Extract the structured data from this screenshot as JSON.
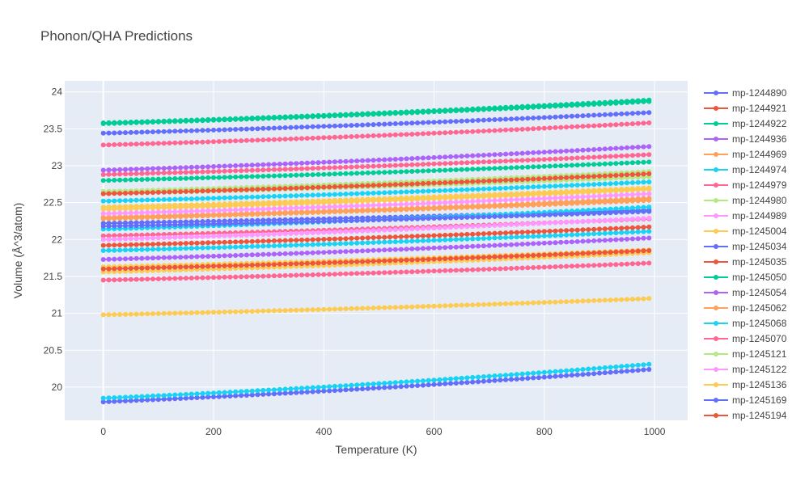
{
  "chart_data": {
    "type": "line",
    "title": "Phonon/QHA Predictions",
    "xlabel": "Temperature (K)",
    "ylabel": "Volume (Å^3/atom)",
    "xlim": [
      -70,
      1060
    ],
    "ylim": [
      19.55,
      24.15
    ],
    "x_ticks": [
      0,
      200,
      400,
      600,
      800,
      1000
    ],
    "y_ticks": [
      20,
      20.5,
      21,
      21.5,
      22,
      22.5,
      23,
      23.5,
      24
    ],
    "x": [
      0,
      990
    ],
    "grid": true,
    "legend_position": "right",
    "series": [
      {
        "name": "mp-1244890",
        "color": "#636efa",
        "values": [
          19.8,
          20.24
        ]
      },
      {
        "name": "mp-1244921",
        "color": "#ef553b",
        "values": [
          21.6,
          21.85
        ]
      },
      {
        "name": "mp-1244922",
        "color": "#00cc96",
        "values": [
          23.58,
          23.89
        ]
      },
      {
        "name": "mp-1244936",
        "color": "#ab63fa",
        "values": [
          21.73,
          22.02
        ]
      },
      {
        "name": "mp-1244969",
        "color": "#ffa15a",
        "values": [
          22.28,
          22.56
        ]
      },
      {
        "name": "mp-1244974",
        "color": "#19d3f3",
        "values": [
          22.14,
          22.44
        ]
      },
      {
        "name": "mp-1244979",
        "color": "#ff6692",
        "values": [
          21.45,
          21.68
        ]
      },
      {
        "name": "mp-1244980",
        "color": "#b6e880",
        "values": [
          22.62,
          22.85
        ]
      },
      {
        "name": "mp-1244989",
        "color": "#ff97ff",
        "values": [
          22.0,
          22.29
        ]
      },
      {
        "name": "mp-1245004",
        "color": "#fecb52",
        "values": [
          22.44,
          22.7
        ]
      },
      {
        "name": "mp-1245034",
        "color": "#636efa",
        "values": [
          23.44,
          23.72
        ]
      },
      {
        "name": "mp-1245035",
        "color": "#ef553b",
        "values": [
          21.92,
          22.17
        ]
      },
      {
        "name": "mp-1245050",
        "color": "#00cc96",
        "values": [
          22.8,
          23.05
        ]
      },
      {
        "name": "mp-1245054",
        "color": "#ab63fa",
        "values": [
          22.94,
          23.26
        ]
      },
      {
        "name": "mp-1245062",
        "color": "#ffa15a",
        "values": [
          22.29,
          22.53
        ]
      },
      {
        "name": "mp-1245068",
        "color": "#19d3f3",
        "values": [
          19.85,
          20.31
        ]
      },
      {
        "name": "mp-1245070",
        "color": "#ff6692",
        "values": [
          23.28,
          23.58
        ]
      },
      {
        "name": "mp-1245121",
        "color": "#b6e880",
        "values": [
          22.65,
          22.92
        ]
      },
      {
        "name": "mp-1245122",
        "color": "#ff97ff",
        "values": [
          22.35,
          22.62
        ]
      },
      {
        "name": "mp-1245136",
        "color": "#fecb52",
        "values": [
          20.98,
          21.2
        ]
      },
      {
        "name": "mp-1245169",
        "color": "#636efa",
        "values": [
          22.18,
          22.38
        ]
      },
      {
        "name": "mp-1245194",
        "color": "#ef553b",
        "values": [
          22.62,
          22.89
        ]
      }
    ],
    "extra_traces": [
      {
        "color": "#19d3f3",
        "values": [
          22.52,
          22.78
        ]
      },
      {
        "color": "#fecb52",
        "values": [
          21.56,
          21.82
        ]
      },
      {
        "color": "#ff6692",
        "values": [
          22.88,
          23.15
        ]
      },
      {
        "color": "#19d3f3",
        "values": [
          21.85,
          22.11
        ]
      },
      {
        "color": "#ffa15a",
        "values": [
          22.3,
          22.55
        ]
      },
      {
        "color": "#fecb52",
        "values": [
          22.41,
          22.68
        ]
      },
      {
        "color": "#636efa",
        "values": [
          22.22,
          22.4
        ]
      },
      {
        "color": "#00cc96",
        "values": [
          23.57,
          23.87
        ]
      },
      {
        "color": "#ff6692",
        "values": [
          22.05,
          22.28
        ]
      },
      {
        "color": "#fecb52",
        "values": [
          21.63,
          21.86
        ]
      }
    ]
  }
}
